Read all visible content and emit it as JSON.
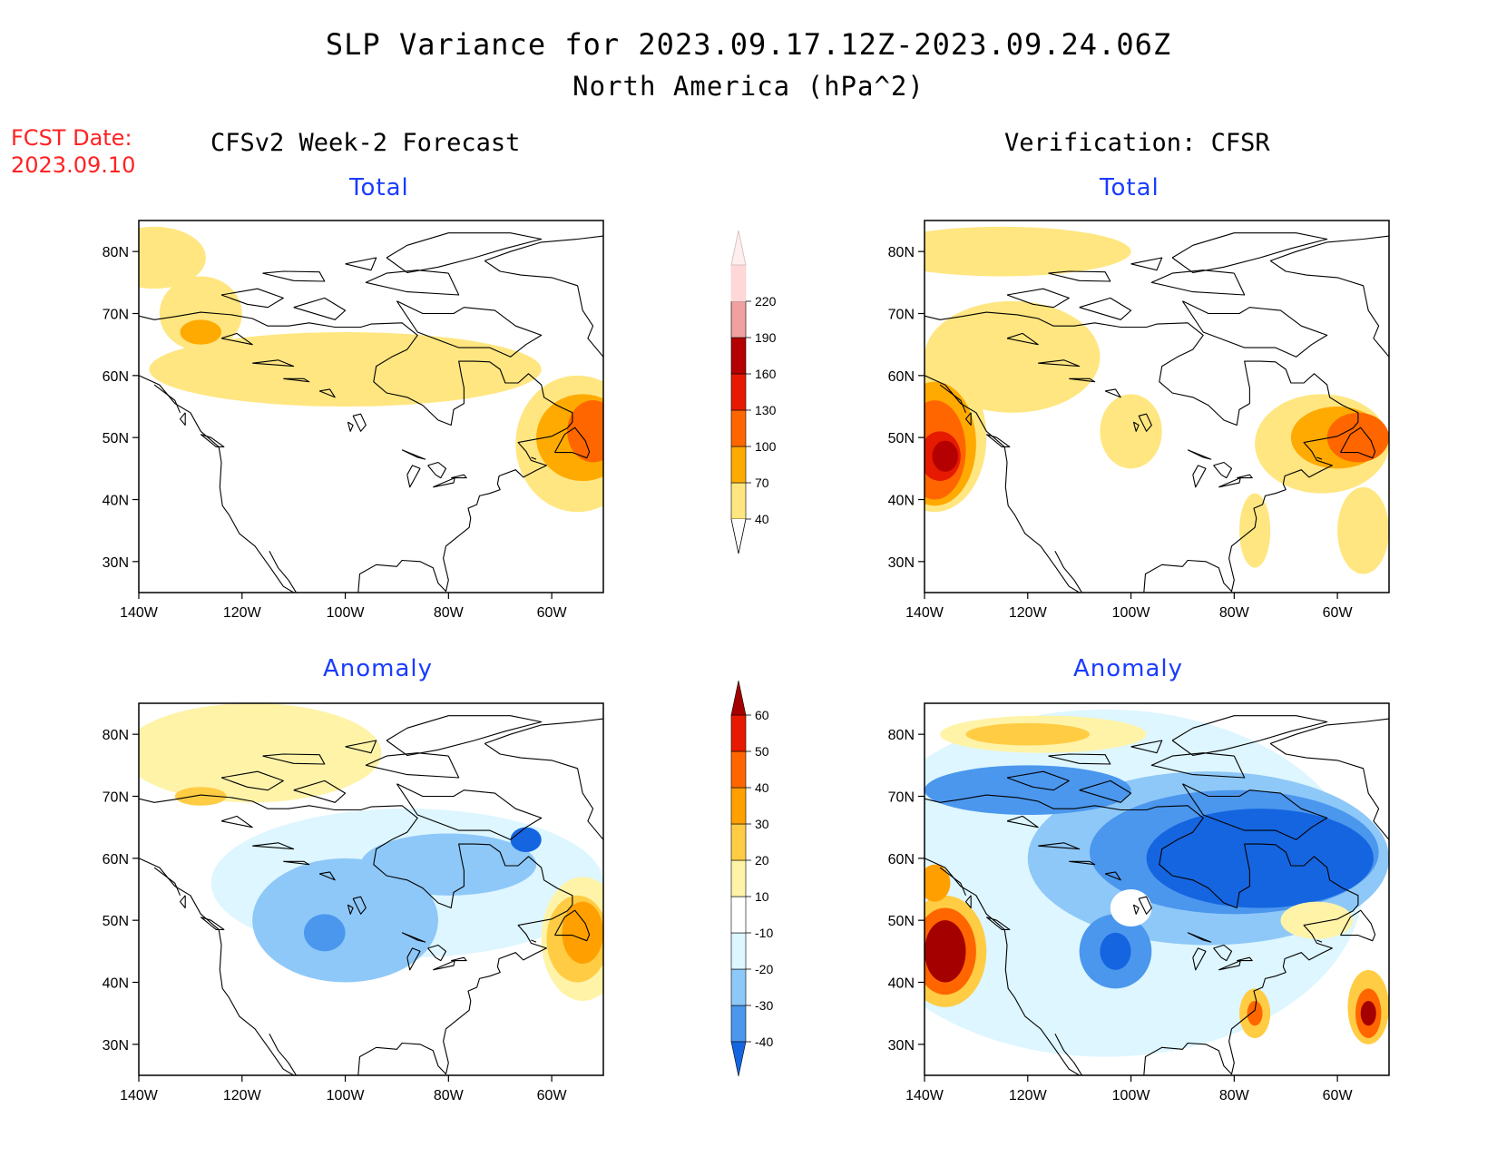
{
  "header": {
    "title": "SLP Variance for 2023.09.17.12Z-2023.09.24.06Z",
    "subtitle": "North America (hPa^2)",
    "fcst_label": "FCST Date:",
    "fcst_date": "2023.09.10"
  },
  "columns": {
    "left": "CFSv2 Week-2 Forecast",
    "right": "Verification: CFSR"
  },
  "panels": [
    {
      "id": "fcst-total",
      "title": "Total",
      "scale": "total"
    },
    {
      "id": "verif-total",
      "title": "Total",
      "scale": "total"
    },
    {
      "id": "fcst-anomaly",
      "title": "Anomaly",
      "scale": "anomaly"
    },
    {
      "id": "verif-anomaly",
      "title": "Anomaly",
      "scale": "anomaly"
    }
  ],
  "axes": {
    "lat_labels": [
      "80N",
      "70N",
      "60N",
      "50N",
      "40N",
      "30N"
    ],
    "lon_labels": [
      "140W",
      "120W",
      "100W",
      "80W",
      "60W"
    ],
    "lat_values": [
      80,
      70,
      60,
      50,
      40,
      30
    ],
    "lon_values": [
      -140,
      -120,
      -100,
      -80,
      -60
    ],
    "lon_range": [
      -140,
      -50
    ],
    "lat_range": [
      25,
      85
    ]
  },
  "colorbars": {
    "total": {
      "labels": [
        "40",
        "70",
        "100",
        "130",
        "160",
        "190",
        "220"
      ],
      "colors": [
        "#ffe680",
        "#ffaa00",
        "#ff6600",
        "#e61a00",
        "#b40000",
        "#f0a0a0",
        "#ffd7d7"
      ],
      "low_arrow": "#ffffff",
      "high_arrow": "#ffeeee"
    },
    "anomaly": {
      "labels": [
        "-40",
        "-30",
        "-20",
        "-10",
        "10",
        "20",
        "30",
        "40",
        "50",
        "60"
      ],
      "colors": [
        "#1565e0",
        "#4b97ee",
        "#8ec8f8",
        "#ddf6ff",
        "#ffffff",
        "#fff3a8",
        "#ffcc44",
        "#ffa000",
        "#ff6600",
        "#e61a00",
        "#a50000"
      ]
    }
  },
  "fields": {
    "fcst-total": [
      {
        "lon": -137,
        "lat": 79,
        "rx": 10,
        "ry": 5,
        "level": 0
      },
      {
        "lon": -100,
        "lat": 61,
        "rx": 38,
        "ry": 6,
        "level": 0
      },
      {
        "lon": -128,
        "lat": 70,
        "rx": 8,
        "ry": 6,
        "level": 0
      },
      {
        "lon": -55,
        "lat": 49,
        "rx": 12,
        "ry": 11,
        "level": 0
      },
      {
        "lon": -128,
        "lat": 67,
        "rx": 4,
        "ry": 2,
        "level": 1
      },
      {
        "lon": -54,
        "lat": 50,
        "rx": 9,
        "ry": 7,
        "level": 1
      },
      {
        "lon": -52,
        "lat": 51,
        "rx": 5,
        "ry": 5,
        "level": 2
      }
    ],
    "verif-total": [
      {
        "lon": -125,
        "lat": 80,
        "rx": 25,
        "ry": 4,
        "level": 0
      },
      {
        "lon": -123,
        "lat": 63,
        "rx": 17,
        "ry": 9,
        "level": 0
      },
      {
        "lon": -138,
        "lat": 50,
        "rx": 10,
        "ry": 12,
        "level": 0
      },
      {
        "lon": -100,
        "lat": 51,
        "rx": 6,
        "ry": 6,
        "level": 0
      },
      {
        "lon": -63,
        "lat": 49,
        "rx": 13,
        "ry": 8,
        "level": 0
      },
      {
        "lon": -76,
        "lat": 35,
        "rx": 3,
        "ry": 6,
        "level": 0
      },
      {
        "lon": -55,
        "lat": 35,
        "rx": 5,
        "ry": 7,
        "level": 0
      },
      {
        "lon": -138,
        "lat": 49,
        "rx": 8,
        "ry": 10,
        "level": 1
      },
      {
        "lon": -138,
        "lat": 48,
        "rx": 6,
        "ry": 8,
        "level": 2
      },
      {
        "lon": -137,
        "lat": 47,
        "rx": 4,
        "ry": 4,
        "level": 3
      },
      {
        "lon": -136,
        "lat": 47,
        "rx": 2.5,
        "ry": 2.5,
        "level": 4
      },
      {
        "lon": -60,
        "lat": 50,
        "rx": 9,
        "ry": 5,
        "level": 1
      },
      {
        "lon": -56,
        "lat": 50,
        "rx": 6,
        "ry": 4,
        "level": 2
      }
    ],
    "fcst-anomaly": [
      {
        "lon": -118,
        "lat": 77,
        "rx": 25,
        "ry": 8,
        "level": 5
      },
      {
        "lon": -88,
        "lat": 56,
        "rx": 38,
        "ry": 12,
        "level": 3
      },
      {
        "lon": -100,
        "lat": 50,
        "rx": 18,
        "ry": 10,
        "level": 2
      },
      {
        "lon": -80,
        "lat": 59,
        "rx": 17,
        "ry": 5,
        "level": 2
      },
      {
        "lon": -104,
        "lat": 48,
        "rx": 4,
        "ry": 3,
        "level": 1
      },
      {
        "lon": -65,
        "lat": 63,
        "rx": 3,
        "ry": 2,
        "level": 0
      },
      {
        "lon": -128,
        "lat": 70,
        "rx": 5,
        "ry": 1.5,
        "level": 6
      },
      {
        "lon": -54,
        "lat": 47,
        "rx": 8,
        "ry": 10,
        "level": 5
      },
      {
        "lon": -55,
        "lat": 47,
        "rx": 6,
        "ry": 7,
        "level": 6
      },
      {
        "lon": -54,
        "lat": 48,
        "rx": 4,
        "ry": 5,
        "level": 7
      }
    ],
    "verif-anomaly": [
      {
        "lon": -105,
        "lat": 56,
        "rx": 50,
        "ry": 28,
        "level": 3
      },
      {
        "lon": -85,
        "lat": 60,
        "rx": 35,
        "ry": 14,
        "level": 2
      },
      {
        "lon": -80,
        "lat": 61,
        "rx": 28,
        "ry": 10,
        "level": 1
      },
      {
        "lon": -75,
        "lat": 60,
        "rx": 22,
        "ry": 8,
        "level": 0
      },
      {
        "lon": -120,
        "lat": 71,
        "rx": 20,
        "ry": 4,
        "level": 1
      },
      {
        "lon": -103,
        "lat": 45,
        "rx": 7,
        "ry": 6,
        "level": 1
      },
      {
        "lon": -103,
        "lat": 45,
        "rx": 3,
        "ry": 3,
        "level": 0
      },
      {
        "lon": -117,
        "lat": 80,
        "rx": 20,
        "ry": 3,
        "level": 5
      },
      {
        "lon": -120,
        "lat": 80,
        "rx": 12,
        "ry": 1.8,
        "level": 6
      },
      {
        "lon": -136,
        "lat": 45,
        "rx": 8,
        "ry": 9,
        "level": 6
      },
      {
        "lon": -136,
        "lat": 45,
        "rx": 6,
        "ry": 7,
        "level": 8
      },
      {
        "lon": -136,
        "lat": 45,
        "rx": 4,
        "ry": 5,
        "level": 10
      },
      {
        "lon": -138,
        "lat": 56,
        "rx": 3,
        "ry": 3,
        "level": 7
      },
      {
        "lon": -100,
        "lat": 52,
        "rx": 4,
        "ry": 3,
        "level": 4
      },
      {
        "lon": -76,
        "lat": 35,
        "rx": 3,
        "ry": 4,
        "level": 6
      },
      {
        "lon": -76,
        "lat": 35,
        "rx": 1.5,
        "ry": 2,
        "level": 8
      },
      {
        "lon": -54,
        "lat": 36,
        "rx": 4,
        "ry": 6,
        "level": 6
      },
      {
        "lon": -54,
        "lat": 35,
        "rx": 2.5,
        "ry": 4,
        "level": 8
      },
      {
        "lon": -54,
        "lat": 35,
        "rx": 1.5,
        "ry": 2,
        "level": 10
      },
      {
        "lon": -64,
        "lat": 50,
        "rx": 7,
        "ry": 3,
        "level": 5
      }
    ]
  }
}
